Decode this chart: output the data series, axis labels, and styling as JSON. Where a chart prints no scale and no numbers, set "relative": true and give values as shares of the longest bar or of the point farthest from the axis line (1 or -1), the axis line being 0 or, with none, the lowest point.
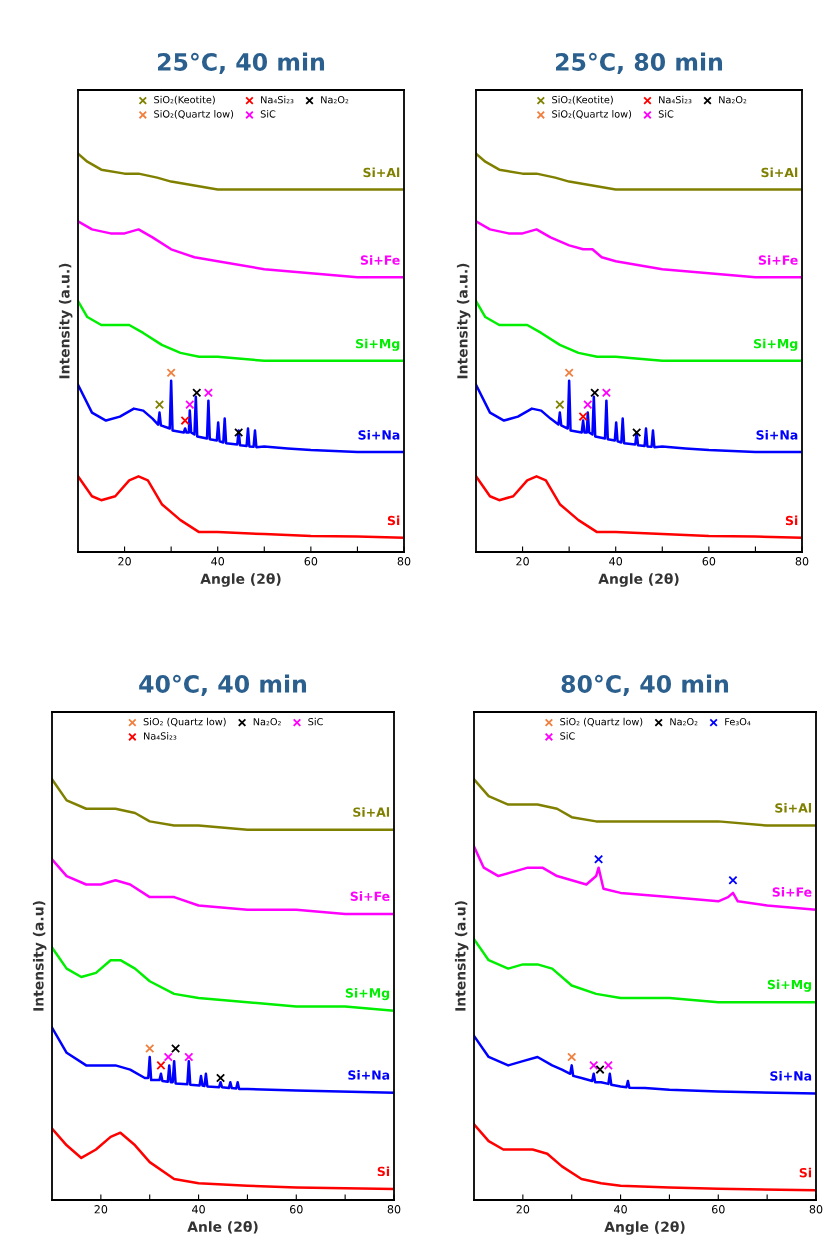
{
  "chart_data": [
    {
      "type": "line",
      "title": "25°C, 40 min",
      "xlabel": "Angle (2θ)",
      "ylabel": "Intensity (a.u.)",
      "relative": true,
      "xlim": [
        10,
        80
      ],
      "xticks": [
        20,
        {
          "value": 30,
          "label": null
        },
        40,
        {
          "value": 50,
          "label": null
        },
        60,
        {
          "value": 70,
          "label": null
        },
        80
      ],
      "legend": "top",
      "series": [
        {
          "name": "Si+Al",
          "color": "#808000",
          "x": [
            10,
            12,
            15,
            20,
            23,
            27,
            30,
            35,
            40,
            50,
            60,
            70,
            80
          ],
          "values": [
            1.0,
            0.98,
            0.96,
            0.95,
            0.95,
            0.94,
            0.93,
            0.92,
            0.91,
            0.91,
            0.91,
            0.91,
            0.91
          ]
        },
        {
          "name": "Si+Fe",
          "color": "#ff00ff",
          "x": [
            10,
            13,
            17,
            20,
            23,
            26,
            30,
            35,
            40,
            50,
            60,
            70,
            80
          ],
          "values": [
            0.83,
            0.81,
            0.8,
            0.8,
            0.81,
            0.79,
            0.76,
            0.74,
            0.73,
            0.71,
            0.7,
            0.69,
            0.69
          ]
        },
        {
          "name": "Si+Mg",
          "color": "#00ee00",
          "x": [
            10,
            12,
            15,
            18,
            21,
            24,
            28,
            32,
            36,
            40,
            50,
            60,
            70,
            80
          ],
          "values": [
            0.63,
            0.59,
            0.57,
            0.57,
            0.57,
            0.55,
            0.52,
            0.5,
            0.49,
            0.49,
            0.48,
            0.48,
            0.48,
            0.48
          ]
        },
        {
          "name": "Si+Na",
          "color": "#0000ff",
          "x": [
            10,
            13,
            16,
            19,
            22,
            24,
            26,
            27.2,
            27.5,
            27.8,
            29.7,
            30,
            30.3,
            32.7,
            33,
            33.3,
            33.8,
            34,
            34.3,
            35,
            35.3,
            35.6,
            37.7,
            38,
            38.3,
            39.8,
            40.1,
            40.4,
            41.2,
            41.5,
            41.8,
            44.2,
            44.5,
            44.8,
            46.2,
            46.5,
            46.8,
            47.7,
            48,
            48.3,
            50,
            55,
            60,
            70,
            80
          ],
          "values": [
            0.42,
            0.35,
            0.33,
            0.34,
            0.36,
            0.355,
            0.335,
            0.32,
            0.35,
            0.318,
            0.31,
            0.43,
            0.305,
            0.3,
            0.31,
            0.3,
            0.3,
            0.355,
            0.3,
            0.295,
            0.39,
            0.29,
            0.285,
            0.38,
            0.283,
            0.28,
            0.325,
            0.278,
            0.275,
            0.335,
            0.273,
            0.27,
            0.305,
            0.268,
            0.266,
            0.31,
            0.265,
            0.264,
            0.305,
            0.263,
            0.265,
            0.26,
            0.256,
            0.251,
            0.251
          ]
        },
        {
          "name": "Si",
          "color": "#ff0000",
          "x": [
            10,
            13,
            15,
            18,
            21,
            23,
            25,
            28,
            32,
            36,
            40,
            50,
            60,
            70,
            80
          ],
          "values": [
            0.19,
            0.14,
            0.13,
            0.14,
            0.18,
            0.19,
            0.18,
            0.12,
            0.08,
            0.05,
            0.05,
            0.045,
            0.04,
            0.039,
            0.036
          ]
        },
        {
          "name": "SiO₂(Keotite)",
          "type": "scatter",
          "marker": "cross",
          "color": "#808000",
          "x": [
            27.5
          ],
          "values": [
            0.37
          ]
        },
        {
          "name": "SiO₂(Quartz low)",
          "type": "scatter",
          "marker": "cross",
          "color": "#f08040",
          "x": [
            30
          ],
          "values": [
            0.45
          ]
        },
        {
          "name": "Na₄Si₂₃",
          "type": "scatter",
          "marker": "cross",
          "color": "#ff0000",
          "x": [
            33
          ],
          "values": [
            0.33
          ]
        },
        {
          "name": "SiC",
          "type": "scatter",
          "marker": "cross",
          "color": "#ff00ff",
          "x": [
            34,
            38
          ],
          "values": [
            0.37,
            0.4
          ]
        },
        {
          "name": "Na₂O₂",
          "type": "scatter",
          "marker": "cross",
          "color": "#000000",
          "x": [
            35.5,
            44.5
          ],
          "values": [
            0.4,
            0.3
          ]
        }
      ]
    },
    {
      "type": "line",
      "title": "25°C, 80 min",
      "xlabel": "Angle (2θ)",
      "ylabel": "Intensity (a.u.)",
      "relative": true,
      "xlim": [
        10,
        80
      ],
      "xticks": [
        20,
        {
          "value": 30,
          "label": null
        },
        40,
        {
          "value": 50,
          "label": null
        },
        60,
        {
          "value": 70,
          "label": null
        },
        80
      ],
      "legend": "top",
      "series": [
        {
          "name": "Si+Al",
          "color": "#808000",
          "x": [
            10,
            12,
            15,
            20,
            23,
            27,
            30,
            35,
            40,
            50,
            60,
            70,
            80
          ],
          "values": [
            1.0,
            0.98,
            0.96,
            0.95,
            0.95,
            0.94,
            0.93,
            0.92,
            0.91,
            0.91,
            0.91,
            0.91,
            0.91
          ]
        },
        {
          "name": "Si+Fe",
          "color": "#ff00ff",
          "x": [
            10,
            13,
            17,
            20,
            23,
            26,
            30,
            33,
            35,
            37,
            40,
            50,
            60,
            70,
            80
          ],
          "values": [
            0.83,
            0.81,
            0.8,
            0.8,
            0.81,
            0.79,
            0.77,
            0.76,
            0.76,
            0.74,
            0.73,
            0.71,
            0.7,
            0.69,
            0.69
          ]
        },
        {
          "name": "Si+Mg",
          "color": "#00ee00",
          "x": [
            10,
            12,
            15,
            18,
            21,
            24,
            28,
            32,
            36,
            40,
            50,
            60,
            70,
            80
          ],
          "values": [
            0.63,
            0.59,
            0.57,
            0.57,
            0.57,
            0.55,
            0.52,
            0.5,
            0.49,
            0.49,
            0.48,
            0.48,
            0.48,
            0.48
          ]
        },
        {
          "name": "Si+Na",
          "color": "#0000ff",
          "x": [
            10,
            13,
            16,
            19,
            22,
            24,
            26,
            27.7,
            28,
            28.3,
            29.7,
            30,
            30.3,
            32.7,
            33,
            33.3,
            33.8,
            34,
            34.3,
            35,
            35.3,
            35.6,
            37.7,
            38,
            38.3,
            39.8,
            40.1,
            40.4,
            41.2,
            41.5,
            41.8,
            44.2,
            44.5,
            44.8,
            46.2,
            46.5,
            46.8,
            47.7,
            48,
            48.3,
            50,
            55,
            60,
            70,
            80
          ],
          "values": [
            0.42,
            0.35,
            0.33,
            0.34,
            0.36,
            0.355,
            0.335,
            0.32,
            0.35,
            0.318,
            0.31,
            0.43,
            0.305,
            0.3,
            0.33,
            0.3,
            0.3,
            0.35,
            0.3,
            0.295,
            0.39,
            0.29,
            0.285,
            0.38,
            0.283,
            0.28,
            0.325,
            0.278,
            0.275,
            0.335,
            0.273,
            0.27,
            0.3,
            0.268,
            0.266,
            0.31,
            0.265,
            0.264,
            0.305,
            0.263,
            0.265,
            0.26,
            0.256,
            0.251,
            0.251
          ]
        },
        {
          "name": "Si",
          "color": "#ff0000",
          "x": [
            10,
            13,
            15,
            18,
            21,
            23,
            25,
            28,
            32,
            36,
            40,
            50,
            60,
            70,
            80
          ],
          "values": [
            0.19,
            0.14,
            0.13,
            0.14,
            0.18,
            0.19,
            0.18,
            0.12,
            0.08,
            0.05,
            0.05,
            0.045,
            0.04,
            0.039,
            0.036
          ]
        },
        {
          "name": "SiO₂(Keotite)",
          "type": "scatter",
          "marker": "cross",
          "color": "#808000",
          "x": [
            28
          ],
          "values": [
            0.37
          ]
        },
        {
          "name": "SiO₂(Quartz low)",
          "type": "scatter",
          "marker": "cross",
          "color": "#f08040",
          "x": [
            30
          ],
          "values": [
            0.45
          ]
        },
        {
          "name": "Na₄Si₂₃",
          "type": "scatter",
          "marker": "cross",
          "color": "#ff0000",
          "x": [
            33
          ],
          "values": [
            0.34
          ]
        },
        {
          "name": "SiC",
          "type": "scatter",
          "marker": "cross",
          "color": "#ff00ff",
          "x": [
            34,
            38
          ],
          "values": [
            0.37,
            0.4
          ]
        },
        {
          "name": "Na₂O₂",
          "type": "scatter",
          "marker": "cross",
          "color": "#000000",
          "x": [
            35.5,
            44.5
          ],
          "values": [
            0.4,
            0.3
          ]
        }
      ]
    },
    {
      "type": "line",
      "title": "40°C, 40 min",
      "xlabel": "Anle (2θ)",
      "ylabel": "Intensity (a.u)",
      "relative": true,
      "xlim": [
        10,
        80
      ],
      "xticks": [
        20,
        {
          "value": 30,
          "label": null
        },
        40,
        {
          "value": 50,
          "label": null
        },
        60,
        {
          "value": 70,
          "label": null
        },
        80
      ],
      "legend": "top",
      "series": [
        {
          "name": "Si+Al",
          "color": "#808000",
          "x": [
            10,
            13,
            17,
            20,
            23,
            27,
            30,
            35,
            40,
            50,
            60,
            80
          ],
          "values": [
            1.0,
            0.95,
            0.93,
            0.93,
            0.93,
            0.92,
            0.9,
            0.89,
            0.89,
            0.88,
            0.88,
            0.88
          ]
        },
        {
          "name": "Si+Fe",
          "color": "#ff00ff",
          "x": [
            10,
            13,
            17,
            20,
            23,
            26,
            30,
            35,
            40,
            50,
            60,
            70,
            80
          ],
          "values": [
            0.81,
            0.77,
            0.75,
            0.75,
            0.76,
            0.75,
            0.72,
            0.72,
            0.7,
            0.69,
            0.69,
            0.68,
            0.68
          ]
        },
        {
          "name": "Si+Mg",
          "color": "#00ee00",
          "x": [
            10,
            13,
            16,
            19,
            22,
            24,
            27,
            30,
            35,
            40,
            50,
            60,
            70,
            80
          ],
          "values": [
            0.6,
            0.55,
            0.53,
            0.54,
            0.57,
            0.57,
            0.55,
            0.52,
            0.49,
            0.48,
            0.47,
            0.46,
            0.46,
            0.45
          ]
        },
        {
          "name": "Si+Na",
          "color": "#0000ff",
          "x": [
            10,
            13,
            17,
            20,
            23,
            26,
            29,
            29.7,
            30,
            30.3,
            32,
            32.3,
            32.6,
            33.7,
            34,
            34.3,
            34.7,
            35,
            35.3,
            37.7,
            38,
            38.3,
            40.2,
            40.5,
            40.8,
            41.2,
            41.5,
            41.8,
            44.2,
            44.5,
            44.8,
            46.2,
            46.5,
            46.8,
            47.7,
            48,
            48.3,
            50,
            60,
            80
          ],
          "values": [
            0.41,
            0.35,
            0.32,
            0.32,
            0.32,
            0.31,
            0.29,
            0.29,
            0.34,
            0.285,
            0.285,
            0.3,
            0.283,
            0.281,
            0.32,
            0.28,
            0.28,
            0.33,
            0.277,
            0.275,
            0.33,
            0.274,
            0.272,
            0.295,
            0.272,
            0.271,
            0.3,
            0.27,
            0.268,
            0.28,
            0.268,
            0.266,
            0.28,
            0.266,
            0.265,
            0.28,
            0.264,
            0.264,
            0.26,
            0.255
          ]
        },
        {
          "name": "Si",
          "color": "#ff0000",
          "x": [
            10,
            13,
            16,
            19,
            22,
            24,
            27,
            30,
            35,
            40,
            50,
            60,
            80
          ],
          "values": [
            0.17,
            0.13,
            0.1,
            0.12,
            0.15,
            0.16,
            0.13,
            0.09,
            0.05,
            0.04,
            0.034,
            0.03,
            0.026
          ]
        },
        {
          "name": "SiO₂ (Quartz low)",
          "type": "scatter",
          "marker": "cross",
          "color": "#f08040",
          "x": [
            30
          ],
          "values": [
            0.36
          ]
        },
        {
          "name": "Na₄Si₂₃",
          "type": "scatter",
          "marker": "cross",
          "color": "#ff0000",
          "x": [
            32.3
          ],
          "values": [
            0.32
          ]
        },
        {
          "name": "Na₂O₂",
          "type": "scatter",
          "marker": "cross",
          "color": "#000000",
          "x": [
            35.3,
            44.5
          ],
          "values": [
            0.36,
            0.29
          ]
        },
        {
          "name": "SiC",
          "type": "scatter",
          "marker": "cross",
          "color": "#ff00ff",
          "x": [
            33.8,
            38
          ],
          "values": [
            0.34,
            0.34
          ]
        }
      ]
    },
    {
      "type": "line",
      "title": "80°C, 40 min",
      "xlabel": "Angle (2θ)",
      "ylabel": "Intensity (a.u)",
      "relative": true,
      "xlim": [
        10,
        80
      ],
      "xticks": [
        20,
        {
          "value": 30,
          "label": null
        },
        40,
        {
          "value": 50,
          "label": null
        },
        60,
        {
          "value": 70,
          "label": null
        },
        80
      ],
      "legend": "top",
      "series": [
        {
          "name": "Si+Al",
          "color": "#808000",
          "x": [
            10,
            13,
            17,
            20,
            23,
            27,
            30,
            35,
            40,
            50,
            60,
            70,
            80
          ],
          "values": [
            1.0,
            0.96,
            0.94,
            0.94,
            0.94,
            0.93,
            0.91,
            0.9,
            0.9,
            0.9,
            0.9,
            0.89,
            0.89
          ]
        },
        {
          "name": "Si+Fe",
          "color": "#ff00ff",
          "x": [
            10,
            12,
            15,
            18,
            21,
            24,
            27,
            30,
            33,
            35,
            35.5,
            36.5,
            40,
            50,
            60,
            62,
            63,
            64,
            70,
            80
          ],
          "values": [
            0.84,
            0.79,
            0.77,
            0.78,
            0.79,
            0.79,
            0.77,
            0.76,
            0.75,
            0.77,
            0.79,
            0.74,
            0.73,
            0.72,
            0.71,
            0.72,
            0.73,
            0.71,
            0.7,
            0.69
          ]
        },
        {
          "name": "Si+Mg",
          "color": "#00ee00",
          "x": [
            10,
            13,
            17,
            20,
            23,
            26,
            30,
            35,
            40,
            50,
            60,
            80
          ],
          "values": [
            0.62,
            0.57,
            0.55,
            0.56,
            0.56,
            0.55,
            0.51,
            0.49,
            0.48,
            0.48,
            0.47,
            0.47
          ]
        },
        {
          "name": "Si+Na",
          "color": "#0000ff",
          "x": [
            10,
            13,
            17,
            20,
            23,
            26,
            28,
            29.7,
            30,
            30.3,
            32,
            34.2,
            34.5,
            34.8,
            36,
            37.5,
            37.8,
            38.1,
            40,
            41.2,
            41.5,
            41.8,
            45,
            50,
            60,
            80
          ],
          "values": [
            0.39,
            0.34,
            0.32,
            0.33,
            0.34,
            0.32,
            0.31,
            0.3,
            0.32,
            0.295,
            0.29,
            0.283,
            0.3,
            0.28,
            0.28,
            0.276,
            0.3,
            0.274,
            0.27,
            0.268,
            0.283,
            0.267,
            0.266,
            0.262,
            0.258,
            0.253
          ]
        },
        {
          "name": "Si",
          "color": "#ff0000",
          "x": [
            10,
            13,
            16,
            19,
            22,
            25,
            28,
            32,
            36,
            40,
            50,
            60,
            80
          ],
          "values": [
            0.18,
            0.14,
            0.12,
            0.12,
            0.12,
            0.11,
            0.08,
            0.05,
            0.04,
            0.034,
            0.03,
            0.027,
            0.023
          ]
        },
        {
          "name": "SiO₂ (Quartz low)",
          "type": "scatter",
          "marker": "cross",
          "color": "#f08040",
          "x": [
            30
          ],
          "values": [
            0.34
          ]
        },
        {
          "name": "SiC",
          "type": "scatter",
          "marker": "cross",
          "color": "#ff00ff",
          "x": [
            34.5,
            37.5
          ],
          "values": [
            0.32,
            0.32
          ]
        },
        {
          "name": "Na₂O₂",
          "type": "scatter",
          "marker": "cross",
          "color": "#000000",
          "x": [
            35.8
          ],
          "values": [
            0.31
          ]
        },
        {
          "name": "Fe₃O₄",
          "type": "scatter",
          "marker": "cross",
          "color": "#0000ff",
          "x": [
            35.5,
            63
          ],
          "values": [
            0.81,
            0.76
          ]
        }
      ]
    }
  ]
}
